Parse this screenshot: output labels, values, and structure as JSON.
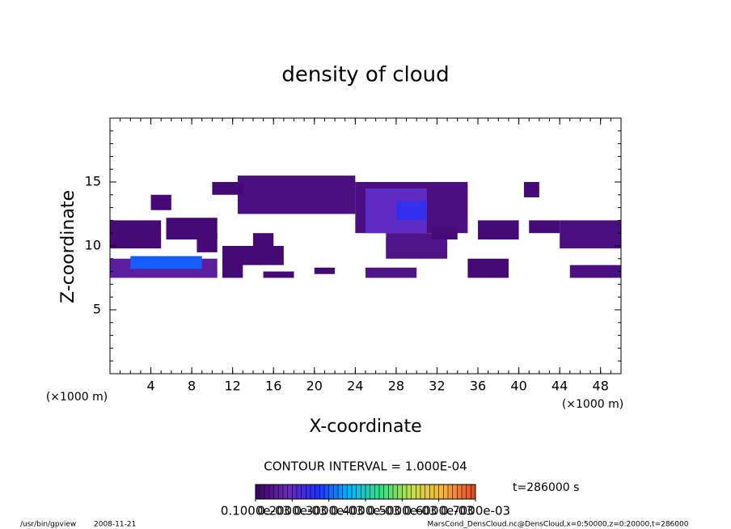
{
  "chart_data": {
    "type": "heatmap",
    "title": "density of cloud",
    "x_label": "X-coordinate",
    "y_label": "Z-coordinate",
    "x_unit": "(×1000 m)",
    "y_unit": "(×1000 m)",
    "xlim": [
      0,
      50
    ],
    "ylim": [
      0,
      20
    ],
    "xticks": [
      4,
      8,
      12,
      16,
      20,
      24,
      28,
      32,
      36,
      40,
      44,
      48
    ],
    "yticks": [
      5,
      10,
      15
    ],
    "contour_interval": "CONTOUR INTERVAL = 1.000E-04",
    "time_label": "t=286000 s",
    "footer_program": "/usr/bin/gpview",
    "footer_date": "2008-11-21",
    "footer_source": "MarsCond_DensCloud.nc@DensCloud,x=0:50000,z=0:20000,t=286000",
    "clim": [
      0.0001,
      0.0007
    ],
    "colormap": [
      "#3a0060",
      "#6a2ab8",
      "#2030ff",
      "#00b8ff",
      "#30e080",
      "#c8e040",
      "#ffb040",
      "#e04020"
    ],
    "cticks": [
      {
        "value": 0.0001,
        "label": "0.1000e-03"
      },
      {
        "value": 0.0002,
        "label": "0.2000e-03"
      },
      {
        "value": 0.0003,
        "label": "0.3000e-03"
      },
      {
        "value": 0.0004,
        "label": "0.4000e-03"
      },
      {
        "value": 0.0005,
        "label": "0.5000e-03"
      },
      {
        "value": 0.0006,
        "label": "0.6000e-03"
      },
      {
        "value": 0.0007,
        "label": "0.7000e-03"
      }
    ],
    "patches": [
      {
        "x": [
          0,
          10.5
        ],
        "z": [
          7.5,
          9
        ],
        "value": 0.00016
      },
      {
        "x": [
          2,
          9
        ],
        "z": [
          8.2,
          9.2
        ],
        "value": 0.0003
      },
      {
        "x": [
          0,
          5
        ],
        "z": [
          9.8,
          12
        ],
        "value": 0.00012
      },
      {
        "x": [
          5.5,
          10.5
        ],
        "z": [
          10.5,
          12.2
        ],
        "value": 0.00012
      },
      {
        "x": [
          4,
          6
        ],
        "z": [
          12.8,
          14
        ],
        "value": 0.00012
      },
      {
        "x": [
          8.5,
          10.5
        ],
        "z": [
          9.5,
          11
        ],
        "value": 0.00012
      },
      {
        "x": [
          11,
          13
        ],
        "z": [
          7.5,
          9
        ],
        "value": 0.00012
      },
      {
        "x": [
          11,
          17
        ],
        "z": [
          8.5,
          10
        ],
        "value": 0.00012
      },
      {
        "x": [
          12.5,
          24
        ],
        "z": [
          12.5,
          15.5
        ],
        "value": 0.00013
      },
      {
        "x": [
          10,
          13
        ],
        "z": [
          14,
          15
        ],
        "value": 0.00012
      },
      {
        "x": [
          14,
          16
        ],
        "z": [
          9.5,
          11
        ],
        "value": 0.00012
      },
      {
        "x": [
          15,
          18
        ],
        "z": [
          7.5,
          8
        ],
        "value": 0.00012
      },
      {
        "x": [
          20,
          22
        ],
        "z": [
          7.8,
          8.3
        ],
        "value": 0.00012
      },
      {
        "x": [
          24,
          35
        ],
        "z": [
          11,
          15
        ],
        "value": 0.00013
      },
      {
        "x": [
          25,
          31
        ],
        "z": [
          11,
          14.5
        ],
        "value": 0.0002
      },
      {
        "x": [
          28,
          31
        ],
        "z": [
          12,
          13.5
        ],
        "value": 0.00025
      },
      {
        "x": [
          27,
          33
        ],
        "z": [
          9,
          11
        ],
        "value": 0.00014
      },
      {
        "x": [
          25,
          30
        ],
        "z": [
          7.5,
          8.3
        ],
        "value": 0.00014
      },
      {
        "x": [
          31.5,
          34
        ],
        "z": [
          10.5,
          11.5
        ],
        "value": 0.00012
      },
      {
        "x": [
          35,
          39
        ],
        "z": [
          7.5,
          9
        ],
        "value": 0.00012
      },
      {
        "x": [
          36,
          40
        ],
        "z": [
          10.5,
          12
        ],
        "value": 0.00012
      },
      {
        "x": [
          40.5,
          42
        ],
        "z": [
          13.8,
          15
        ],
        "value": 0.00012
      },
      {
        "x": [
          41,
          44
        ],
        "z": [
          11,
          12
        ],
        "value": 0.00012
      },
      {
        "x": [
          44,
          50
        ],
        "z": [
          9.8,
          12
        ],
        "value": 0.00013
      },
      {
        "x": [
          45,
          50
        ],
        "z": [
          7.5,
          8.5
        ],
        "value": 0.00013
      }
    ]
  }
}
